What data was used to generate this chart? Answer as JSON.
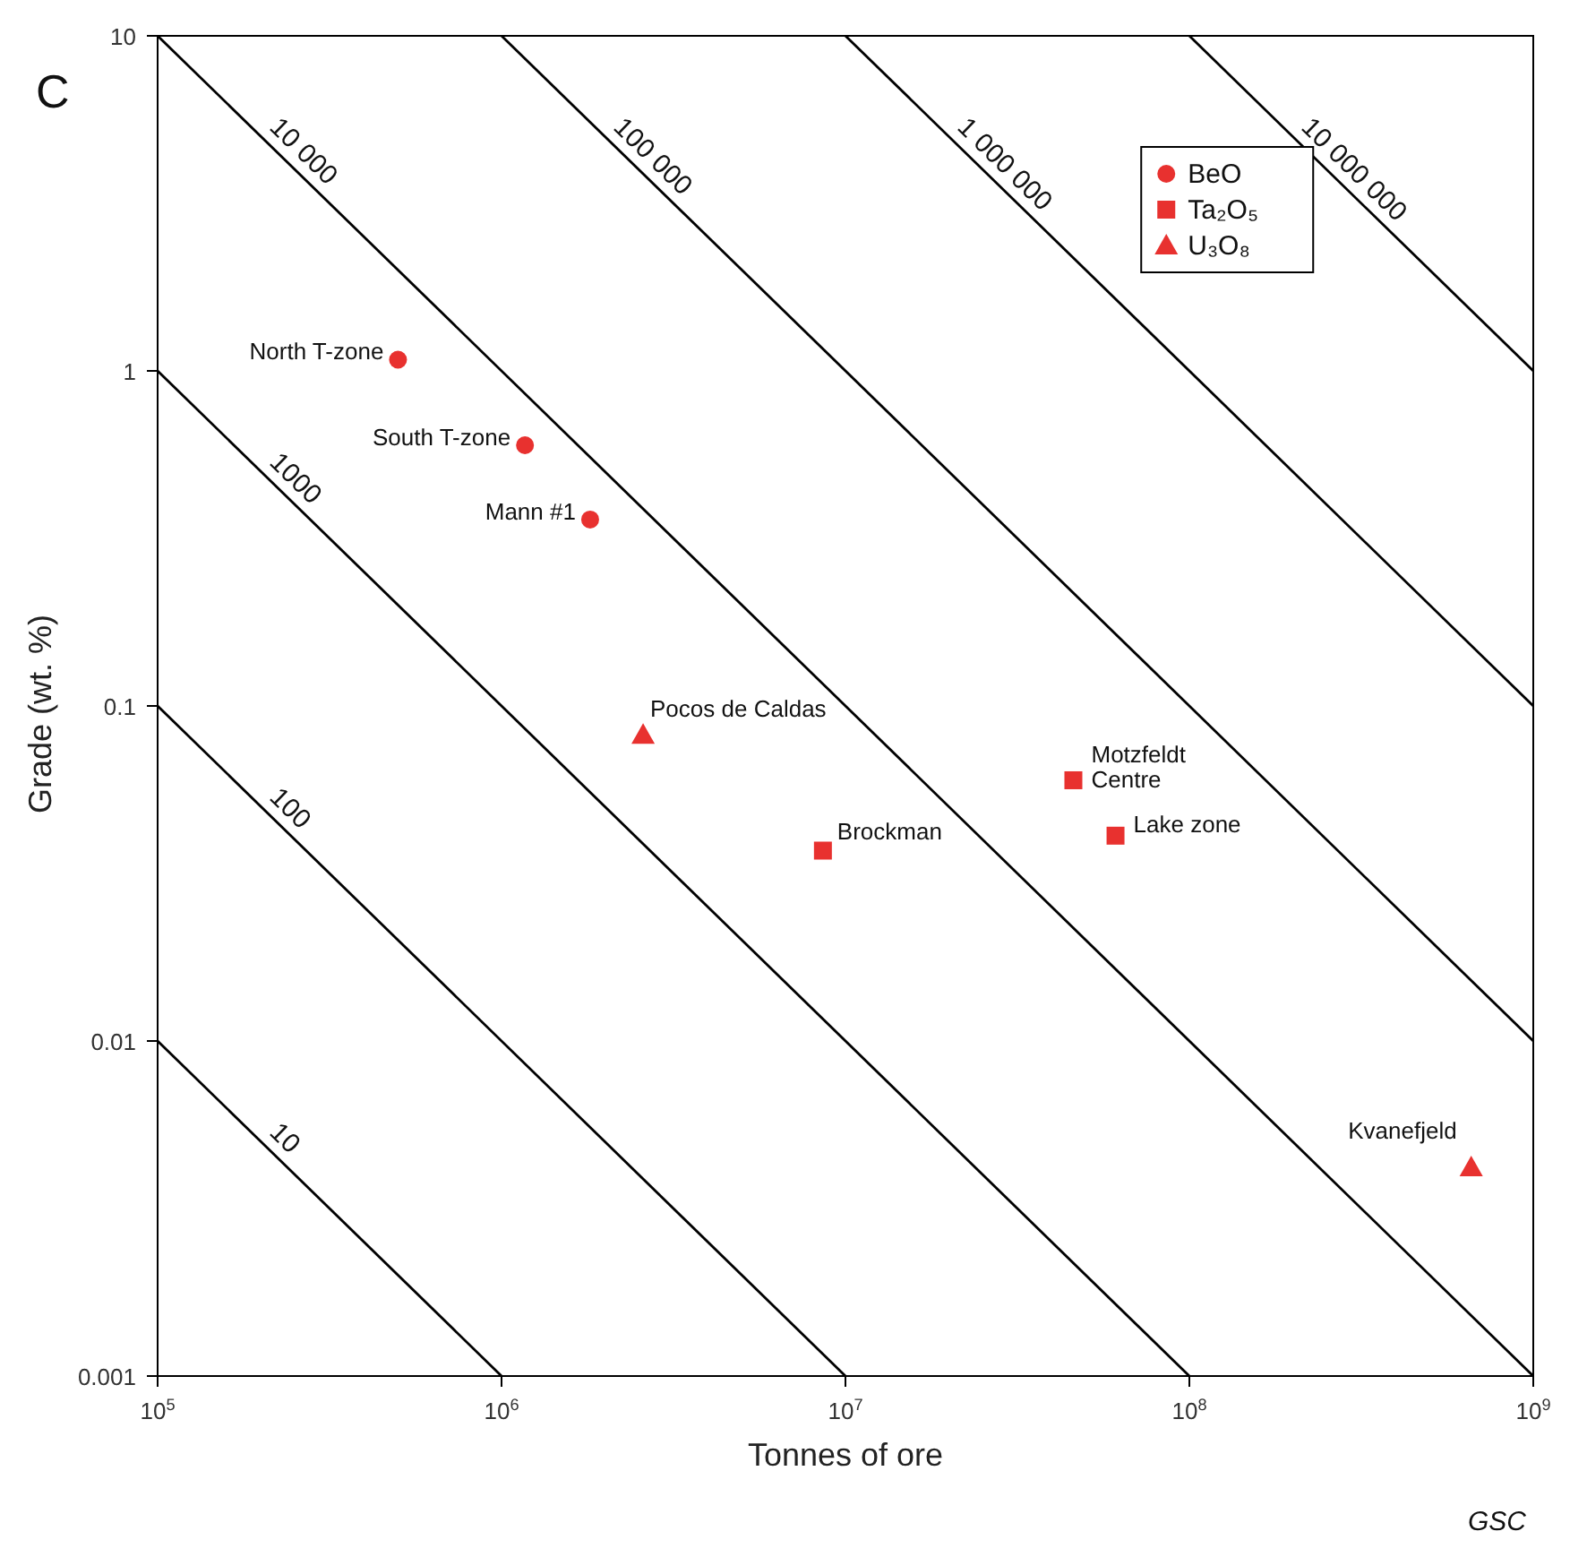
{
  "chart_data": {
    "type": "scatter",
    "xlabel": "Tonnes of ore",
    "ylabel": "Grade (wt. %)",
    "log": "xy",
    "xlim": [
      100000,
      1000000000
    ],
    "ylim": [
      0.001,
      10
    ],
    "xticks": [
      {
        "value": 100000,
        "label": "10$^{5}$"
      },
      {
        "value": 1000000,
        "label": "10$^{6}$"
      },
      {
        "value": 10000000,
        "label": "10$^{7}$"
      },
      {
        "value": 100000000,
        "label": "10$^{8}$"
      },
      {
        "value": 1000000000,
        "label": "10$^{9}$"
      }
    ],
    "yticks": [
      0.001,
      0.01,
      0.1,
      1,
      10
    ],
    "legend": "top right",
    "series": [
      {
        "name": "BeO",
        "type": "scatter",
        "marker": "circle",
        "color": "#e8312f",
        "x": [
          500000,
          1170000,
          1810000
        ],
        "values": [
          1.08,
          0.6,
          0.36
        ]
      },
      {
        "name": "Ta₂O₅",
        "type": "scatter",
        "marker": "square",
        "color": "#e8312f",
        "x": [
          8600000,
          46000000,
          61000000
        ],
        "values": [
          0.037,
          0.06,
          0.041
        ]
      },
      {
        "name": "U₃O₈",
        "type": "scatter",
        "marker": "triangle",
        "color": "#e8312f",
        "x": [
          2580000,
          660000000
        ],
        "values": [
          0.082,
          0.0042
        ]
      },
      {
        "name": "10",
        "type": "line",
        "marker": "none",
        "color": "#000000",
        "x": [
          100000,
          1000000
        ],
        "values": [
          0.01,
          0.001
        ]
      },
      {
        "name": "100",
        "type": "line",
        "marker": "none",
        "color": "#000000",
        "x": [
          100000,
          10000000
        ],
        "values": [
          0.1,
          0.001
        ]
      },
      {
        "name": "1000",
        "type": "line",
        "marker": "none",
        "color": "#000000",
        "x": [
          100000,
          100000000
        ],
        "values": [
          1,
          0.001
        ]
      },
      {
        "name": "10 000",
        "type": "line",
        "marker": "none",
        "color": "#000000",
        "x": [
          100000,
          1000000000
        ],
        "values": [
          10,
          0.001
        ]
      },
      {
        "name": "100 000",
        "type": "line",
        "marker": "none",
        "color": "#000000",
        "x": [
          1000000,
          1000000000
        ],
        "values": [
          10,
          0.01
        ]
      },
      {
        "name": "1 000 000",
        "type": "line",
        "marker": "none",
        "color": "#000000",
        "x": [
          10000000,
          1000000000
        ],
        "values": [
          10,
          0.1
        ]
      },
      {
        "name": "10 000 000",
        "type": "line",
        "marker": "none",
        "color": "#000000",
        "x": [
          100000000,
          1000000000
        ],
        "values": [
          10,
          1
        ]
      }
    ],
    "annotations": [
      {
        "text": "North T-zone",
        "x": 500000,
        "y": 1.08
      },
      {
        "text": "South T-zone",
        "x": 1170000,
        "y": 0.6
      },
      {
        "text": "Mann #1",
        "x": 1810000,
        "y": 0.36
      },
      {
        "text": "Pocos de Caldas",
        "x": 2580000,
        "y": 0.082
      },
      {
        "text": "Brockman",
        "x": 8600000,
        "y": 0.037
      },
      {
        "text": "Motzfeldt\nCentre",
        "x": 46000000,
        "y": 0.06
      },
      {
        "text": "Lake zone",
        "x": 61000000,
        "y": 0.041
      },
      {
        "text": "Kvanefjeld",
        "x": 660000000,
        "y": 0.0042
      },
      "C",
      "GSC"
    ]
  }
}
